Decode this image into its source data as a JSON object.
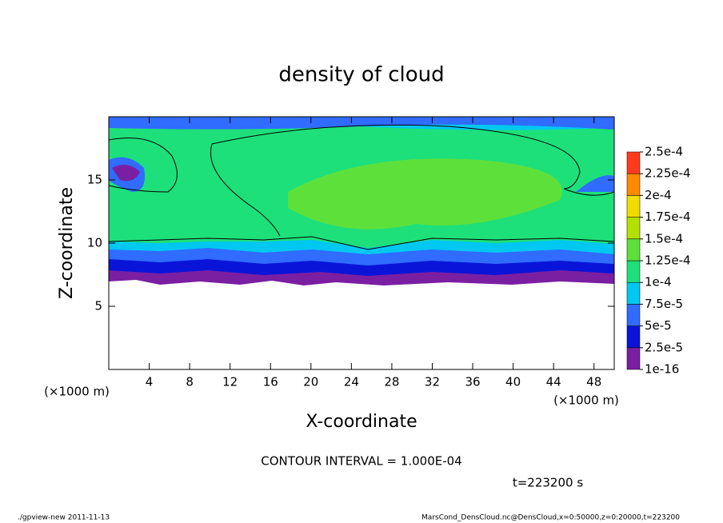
{
  "chart_data": {
    "type": "contour",
    "title": "density of cloud",
    "xlabel": "X-coordinate",
    "ylabel": "Z-coordinate",
    "xunit": "(×1000 m)",
    "yunit": "(×1000 m)",
    "xlim": [
      0,
      50
    ],
    "xticks": [
      4,
      8,
      12,
      16,
      20,
      24,
      28,
      32,
      36,
      40,
      44,
      48
    ],
    "ylim": [
      0,
      20
    ],
    "yticks": [
      5,
      10,
      15
    ],
    "levels": [
      {
        "value": 1e-16,
        "label": "1e-16"
      },
      {
        "value": 2.5e-05,
        "label": "2.5e-5"
      },
      {
        "value": 5e-05,
        "label": "5e-5"
      },
      {
        "value": 7.5e-05,
        "label": "7.5e-5"
      },
      {
        "value": 0.0001,
        "label": "1e-4"
      },
      {
        "value": 0.000125,
        "label": "1.25e-4"
      },
      {
        "value": 0.00015,
        "label": "1.5e-4"
      },
      {
        "value": 0.000175,
        "label": "1.75e-4"
      },
      {
        "value": 0.0002,
        "label": "2e-4"
      },
      {
        "value": 0.000225,
        "label": "2.25e-4"
      },
      {
        "value": 0.00025,
        "label": "2.5e-4"
      }
    ],
    "colors": [
      "#7a1fa2",
      "#0a14d8",
      "#2f6cff",
      "#00c8f0",
      "#1ee07a",
      "#5ee03a",
      "#b4e000",
      "#f0dc00",
      "#ff8a00",
      "#ff3a1e",
      "#ff9a9a"
    ],
    "annotation": "CONTOUR INTERVAL = 1.000E-04",
    "time": "t=223200 s",
    "footer_left": "./gpview-new  2011-11-13",
    "footer_right": "MarsCond_DensCloud.nc@DensCloud,x=0:50000,z=0:20000,t=223200"
  }
}
